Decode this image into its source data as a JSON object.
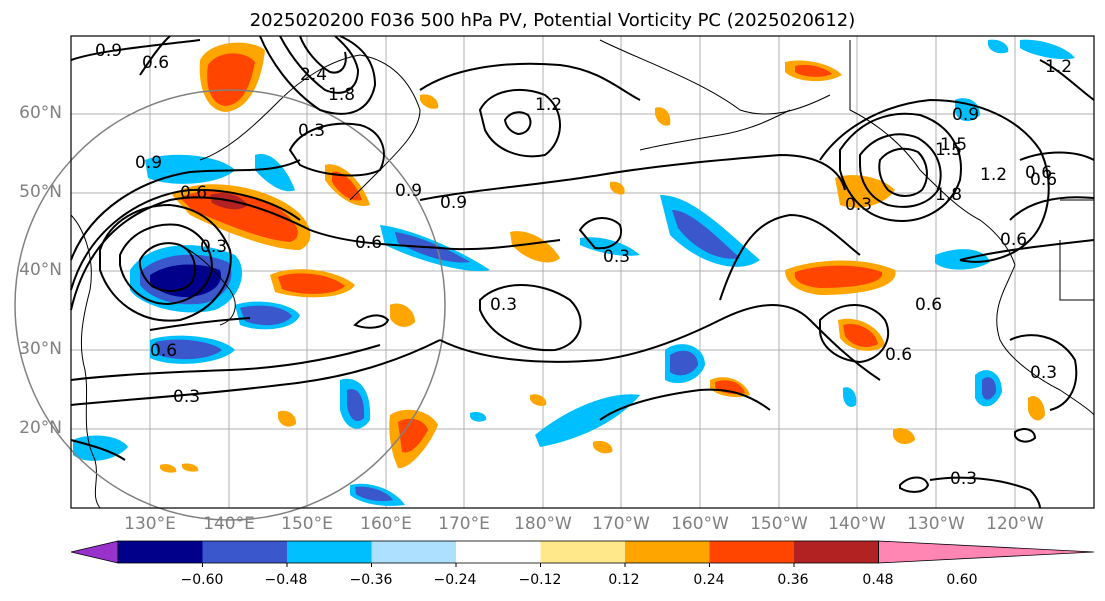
{
  "title": "2025020200 F036 500 hPa PV, Potential Vorticity PC (2025020612)",
  "lat_labels": [
    "60°N",
    "50°N",
    "40°N",
    "30°N",
    "20°N"
  ],
  "lon_labels": [
    "130°E",
    "140°E",
    "150°E",
    "160°E",
    "170°E",
    "180°W",
    "170°W",
    "160°W",
    "150°W",
    "140°W",
    "130°W",
    "120°W"
  ],
  "colorbar": {
    "ticks": [
      "−0.60",
      "−0.48",
      "−0.36",
      "−0.24",
      "−0.12",
      "0.12",
      "0.24",
      "0.36",
      "0.48",
      "0.60"
    ],
    "colors": [
      "#9932CC",
      "#00008B",
      "#3A57CC",
      "#00BFFF",
      "#ADDFFF",
      "#FFFFFF",
      "#FFE88A",
      "#FFA500",
      "#FF4500",
      "#B22222",
      "#FF85B3"
    ]
  },
  "contour_labels": [
    "0.9",
    "0.6",
    "2.4",
    "1.8",
    "0.3",
    "1.2",
    "1.5",
    "0.9",
    "1.8",
    "1.2",
    "0.6",
    "0.3",
    "0.9",
    "0.6",
    "0.3",
    "0.6",
    "0.3",
    "0.6",
    "0.6",
    "0.3",
    "0.3",
    "0.9",
    "0.6",
    "0.3",
    "0.6",
    "1.2",
    "1.5",
    "0.9",
    "0.6",
    "0.3"
  ]
}
